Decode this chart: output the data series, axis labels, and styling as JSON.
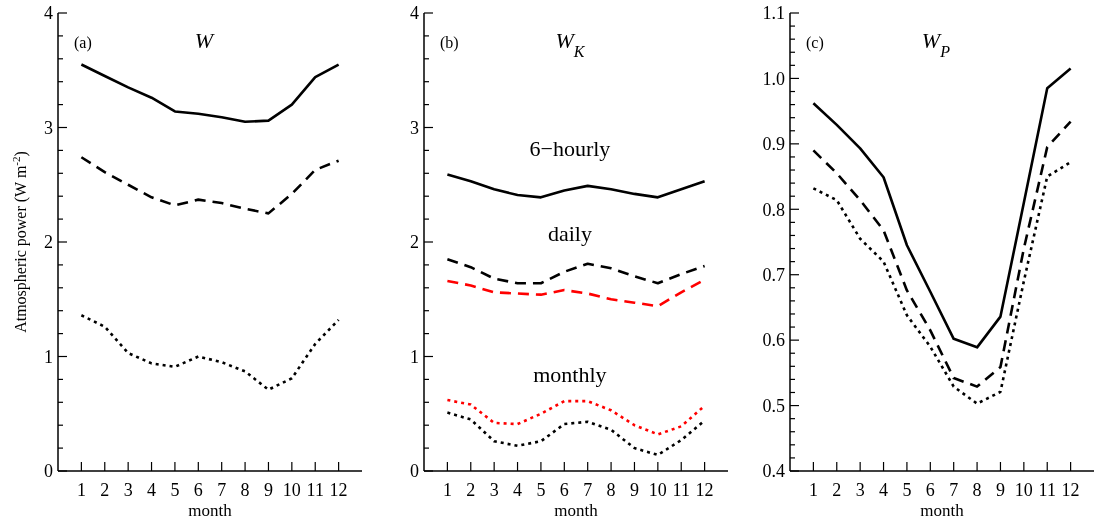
{
  "chart_data": [
    {
      "type": "line",
      "title": "W",
      "ylabel": "Atmospheric power (W m$^{-2}$)",
      "xlabel": "month",
      "annotations": [
        "(a)"
      ],
      "x": [
        1,
        2,
        3,
        4,
        5,
        6,
        7,
        8,
        9,
        10,
        11,
        12
      ],
      "xlim": [
        0,
        13
      ],
      "xticks": [
        1,
        2,
        3,
        4,
        5,
        6,
        7,
        8,
        9,
        10,
        11,
        12
      ],
      "ylim": [
        0,
        4
      ],
      "yticks": [
        0,
        {
          "value": 0.2,
          "label": null
        },
        {
          "value": 0.4,
          "label": null
        },
        {
          "value": 0.6,
          "label": null
        },
        {
          "value": 0.8,
          "label": null
        },
        1,
        {
          "value": 1.2,
          "label": null
        },
        {
          "value": 1.4,
          "label": null
        },
        {
          "value": 1.6,
          "label": null
        },
        {
          "value": 1.8,
          "label": null
        },
        2,
        {
          "value": 2.2,
          "label": null
        },
        {
          "value": 2.4,
          "label": null
        },
        {
          "value": 2.6,
          "label": null
        },
        {
          "value": 2.8,
          "label": null
        },
        3,
        {
          "value": 3.2,
          "label": null
        },
        {
          "value": 3.4,
          "label": null
        },
        {
          "value": 3.6,
          "label": null
        },
        {
          "value": 3.8,
          "label": null
        },
        4
      ],
      "series": [
        {
          "color": "#000000",
          "line_style": "solid",
          "values": [
            3.55,
            3.45,
            3.35,
            3.26,
            3.14,
            3.12,
            3.09,
            3.05,
            3.06,
            3.2,
            3.44,
            3.55
          ]
        },
        {
          "color": "#000000",
          "line_style": "dashed",
          "values": [
            2.74,
            2.61,
            2.5,
            2.39,
            2.32,
            2.37,
            2.34,
            2.29,
            2.25,
            2.42,
            2.63,
            2.71
          ]
        },
        {
          "color": "#000000",
          "line_style": "dotted",
          "values": [
            1.36,
            1.26,
            1.03,
            0.94,
            0.91,
            1.0,
            0.95,
            0.87,
            0.71,
            0.81,
            1.11,
            1.32
          ]
        }
      ]
    },
    {
      "type": "line",
      "title": "W$_{K}$",
      "xlabel": "month",
      "annotations": [
        "(b)",
        "6−hourly",
        "daily",
        "monthly"
      ],
      "x": [
        1,
        2,
        3,
        4,
        5,
        6,
        7,
        8,
        9,
        10,
        11,
        12
      ],
      "xlim": [
        0,
        13
      ],
      "xticks": [
        1,
        2,
        3,
        4,
        5,
        6,
        7,
        8,
        9,
        10,
        11,
        12
      ],
      "ylim": [
        0,
        4
      ],
      "yticks": [
        0,
        {
          "value": 0.2,
          "label": null
        },
        {
          "value": 0.4,
          "label": null
        },
        {
          "value": 0.6,
          "label": null
        },
        {
          "value": 0.8,
          "label": null
        },
        1,
        {
          "value": 1.2,
          "label": null
        },
        {
          "value": 1.4,
          "label": null
        },
        {
          "value": 1.6,
          "label": null
        },
        {
          "value": 1.8,
          "label": null
        },
        2,
        {
          "value": 2.2,
          "label": null
        },
        {
          "value": 2.4,
          "label": null
        },
        {
          "value": 2.6,
          "label": null
        },
        {
          "value": 2.8,
          "label": null
        },
        3,
        {
          "value": 3.2,
          "label": null
        },
        {
          "value": 3.4,
          "label": null
        },
        {
          "value": 3.6,
          "label": null
        },
        {
          "value": 3.8,
          "label": null
        },
        4
      ],
      "series": [
        {
          "color": "#000000",
          "line_style": "solid",
          "values": [
            2.59,
            2.53,
            2.46,
            2.41,
            2.39,
            2.45,
            2.49,
            2.46,
            2.42,
            2.39,
            2.46,
            2.53
          ]
        },
        {
          "color": "#000000",
          "line_style": "dashed",
          "values": [
            1.85,
            1.78,
            1.68,
            1.64,
            1.64,
            1.74,
            1.81,
            1.77,
            1.7,
            1.64,
            1.72,
            1.79
          ]
        },
        {
          "color": "#ff0000",
          "line_style": "dashed",
          "values": [
            1.66,
            1.62,
            1.56,
            1.55,
            1.54,
            1.58,
            1.55,
            1.5,
            1.47,
            1.44,
            1.56,
            1.67
          ]
        },
        {
          "color": "#ff0000",
          "line_style": "dotted",
          "values": [
            0.62,
            0.58,
            0.42,
            0.41,
            0.5,
            0.61,
            0.61,
            0.53,
            0.4,
            0.32,
            0.39,
            0.57
          ]
        },
        {
          "color": "#000000",
          "line_style": "dotted",
          "values": [
            0.51,
            0.45,
            0.26,
            0.22,
            0.26,
            0.41,
            0.43,
            0.36,
            0.2,
            0.14,
            0.27,
            0.44
          ]
        }
      ]
    },
    {
      "type": "line",
      "title": "W$_{P}$",
      "xlabel": "month",
      "annotations": [
        "(c)"
      ],
      "x": [
        1,
        2,
        3,
        4,
        5,
        6,
        7,
        8,
        9,
        10,
        11,
        12
      ],
      "xlim": [
        0,
        13
      ],
      "xticks": [
        1,
        2,
        3,
        4,
        5,
        6,
        7,
        8,
        9,
        10,
        11,
        12
      ],
      "ylim": [
        0.4,
        1.1
      ],
      "yticks": [
        0.4,
        {
          "value": 0.42,
          "label": null
        },
        {
          "value": 0.44,
          "label": null
        },
        {
          "value": 0.46,
          "label": null
        },
        {
          "value": 0.48,
          "label": null
        },
        0.5,
        {
          "value": 0.52,
          "label": null
        },
        {
          "value": 0.54,
          "label": null
        },
        {
          "value": 0.56,
          "label": null
        },
        {
          "value": 0.58,
          "label": null
        },
        0.6,
        {
          "value": 0.62,
          "label": null
        },
        {
          "value": 0.64,
          "label": null
        },
        {
          "value": 0.66,
          "label": null
        },
        {
          "value": 0.68,
          "label": null
        },
        0.7,
        {
          "value": 0.72,
          "label": null
        },
        {
          "value": 0.74,
          "label": null
        },
        {
          "value": 0.76,
          "label": null
        },
        {
          "value": 0.78,
          "label": null
        },
        0.8,
        {
          "value": 0.82,
          "label": null
        },
        {
          "value": 0.84,
          "label": null
        },
        {
          "value": 0.86,
          "label": null
        },
        {
          "value": 0.88,
          "label": null
        },
        0.9,
        {
          "value": 0.92,
          "label": null
        },
        {
          "value": 0.94,
          "label": null
        },
        {
          "value": 0.96,
          "label": null
        },
        {
          "value": 0.98,
          "label": null
        },
        {
          "value": 1,
          "label": "1.0"
        },
        {
          "value": 1.02,
          "label": null
        },
        {
          "value": 1.04,
          "label": null
        },
        {
          "value": 1.06,
          "label": null
        },
        {
          "value": 1.08,
          "label": null
        },
        1.1
      ],
      "series": [
        {
          "color": "#000000",
          "line_style": "solid",
          "values": [
            0.962,
            0.929,
            0.893,
            0.849,
            0.745,
            0.674,
            0.602,
            0.589,
            0.636,
            0.81,
            0.985,
            1.015
          ]
        },
        {
          "color": "#000000",
          "line_style": "dashed",
          "values": [
            0.89,
            0.855,
            0.814,
            0.768,
            0.676,
            0.615,
            0.542,
            0.529,
            0.559,
            0.74,
            0.895,
            0.934
          ]
        },
        {
          "color": "#000000",
          "line_style": "dotted",
          "values": [
            0.832,
            0.814,
            0.755,
            0.72,
            0.638,
            0.59,
            0.529,
            0.503,
            0.521,
            0.69,
            0.85,
            0.872
          ]
        }
      ]
    }
  ]
}
